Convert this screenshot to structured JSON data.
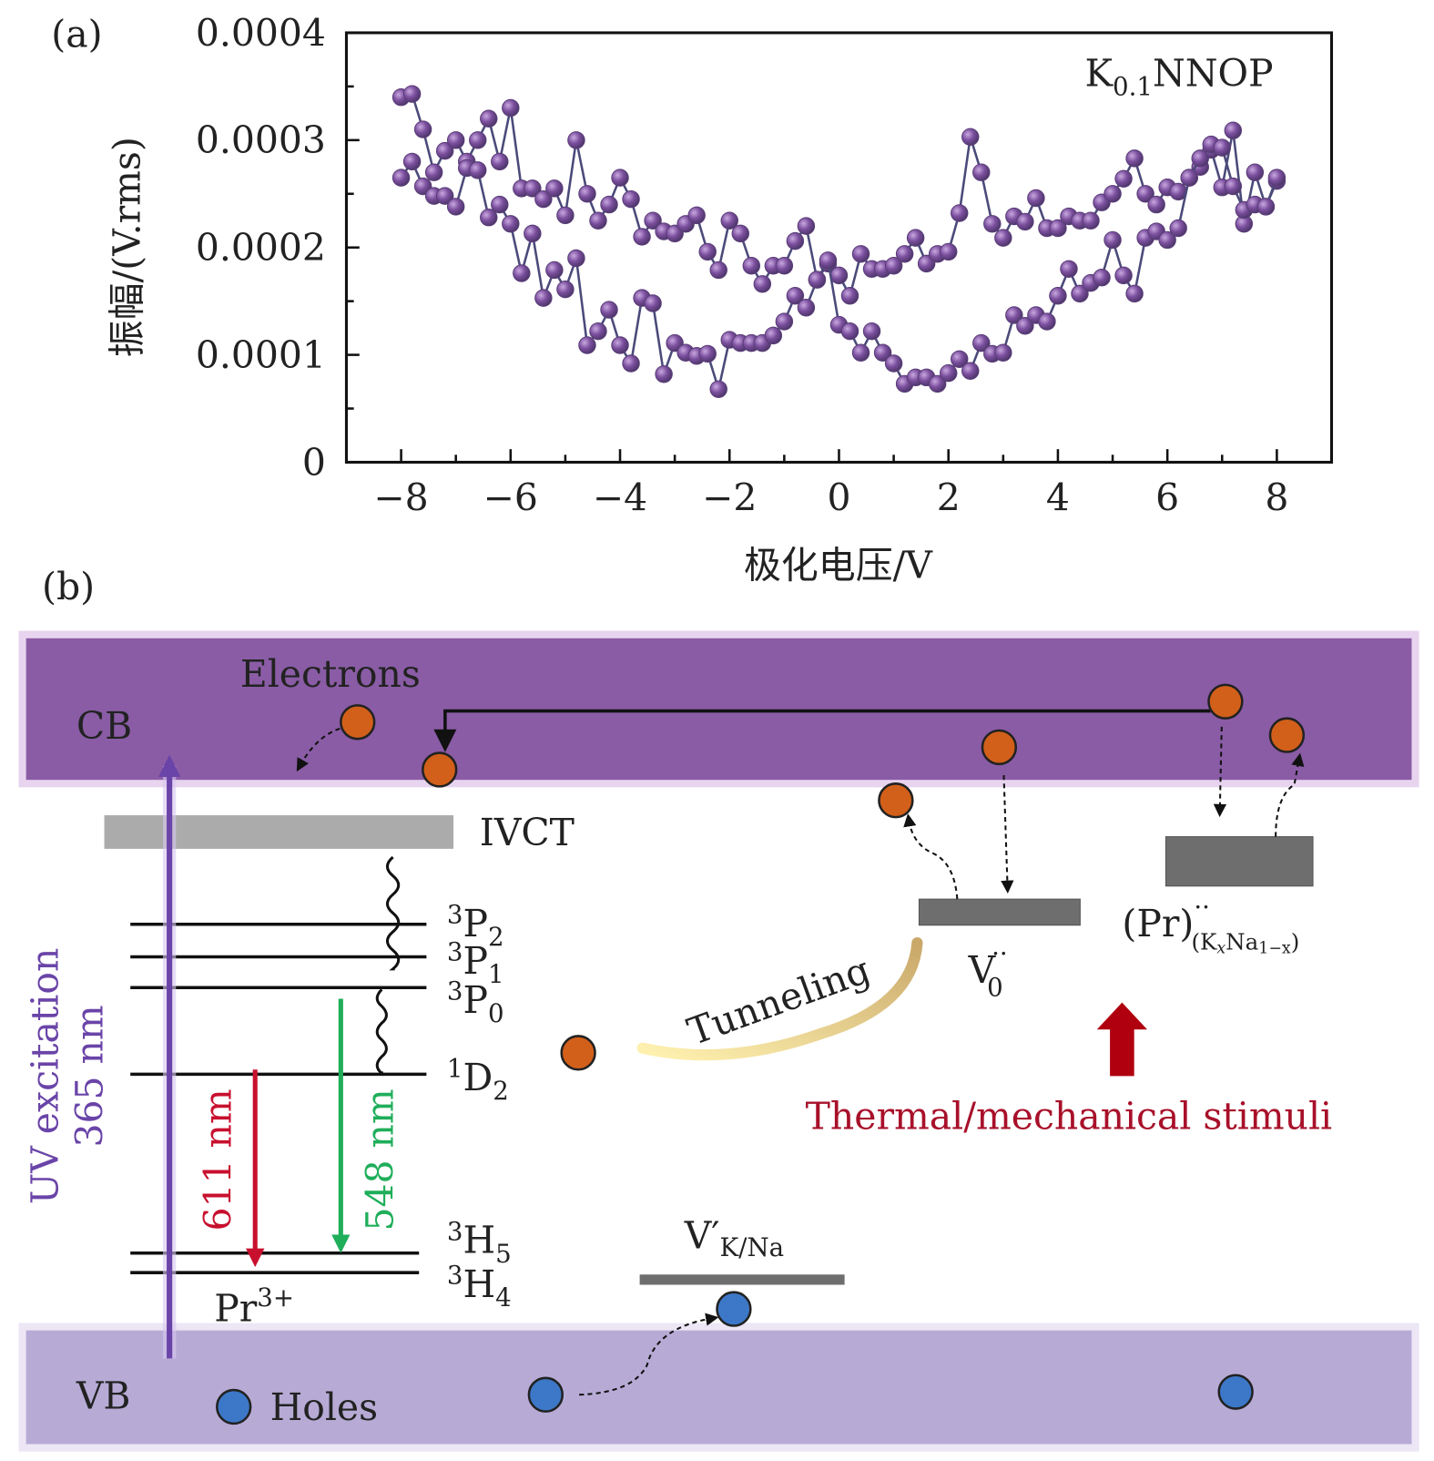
{
  "panel_a": {
    "label": "(a)",
    "chart_data": {
      "type": "scatter",
      "mode": "lines+markers",
      "annotation": {
        "main": "K",
        "sub": "0.1",
        "rest": "NNOP"
      },
      "xlabel": "极化电压/V",
      "ylabel": "振幅/(V.rms)",
      "xlim": [
        -9,
        9
      ],
      "ylim": [
        0,
        0.0004
      ],
      "xticks": [
        -8,
        -6,
        -4,
        -2,
        0,
        2,
        4,
        6,
        8
      ],
      "xtick_labels": [
        "−8",
        "−6",
        "−4",
        "−2",
        "0",
        "2",
        "4",
        "6",
        "8"
      ],
      "yticks": [
        0,
        0.0001,
        0.0002,
        0.0003,
        0.0004
      ],
      "ytick_labels": [
        "0",
        "0.0001",
        "0.0002",
        "0.0003",
        "0.0004"
      ],
      "grid": false,
      "marker_color": "#7b4f9e",
      "line_color": "#4a4a7a",
      "series": [
        {
          "x": [
            -8,
            -7.8,
            -7.6,
            -7.4,
            -7.2,
            -7,
            -6.8,
            -6.6,
            -6.4,
            -6.2,
            -6,
            -5.8,
            -5.6,
            -5.4,
            -5.2,
            -5,
            -4.8,
            -4.6,
            -4.4,
            -4.2,
            -4,
            -3.8,
            -3.6,
            -3.4,
            -3.2,
            -3,
            -2.8,
            -2.6,
            -2.4,
            -2.2,
            -2,
            -1.8,
            -1.6,
            -1.4,
            -1.2,
            -1,
            -0.8,
            -0.6,
            -0.4,
            -0.2,
            0,
            0.2,
            0.4,
            0.6,
            0.8,
            1,
            1.2,
            1.4,
            1.6,
            1.8,
            2,
            2.2,
            2.4,
            2.6,
            2.8,
            3,
            3.2,
            3.4,
            3.6,
            3.8,
            4,
            4.2,
            4.4,
            4.6,
            4.8,
            5,
            5.2,
            5.4,
            5.6,
            5.8,
            6,
            6.2,
            6.4,
            6.6,
            6.8,
            7,
            7.2,
            7.4,
            7.6,
            7.8,
            8
          ],
          "y": [
            0.00034,
            0.000343,
            0.00031,
            0.00027,
            0.00029,
            0.0003,
            0.00028,
            0.0003,
            0.00032,
            0.00028,
            0.00033,
            0.000255,
            0.000255,
            0.000245,
            0.000255,
            0.00023,
            0.0003,
            0.00025,
            0.000225,
            0.00024,
            0.000265,
            0.000245,
            0.00021,
            0.000225,
            0.000215,
            0.000213,
            0.000222,
            0.00023,
            0.000196,
            0.000179,
            0.000225,
            0.000213,
            0.000183,
            0.000166,
            0.000183,
            0.000183,
            0.000206,
            0.00022,
            0.00017,
            0.000185,
            0.000174,
            0.000155,
            0.000194,
            0.00018,
            0.00018,
            0.000183,
            0.000194,
            0.000209,
            0.000185,
            0.000194,
            0.000196,
            0.000232,
            0.000303,
            0.00027,
            0.000222,
            0.000209,
            0.000229,
            0.000224,
            0.000246,
            0.000218,
            0.000218,
            0.000229,
            0.000225,
            0.000225,
            0.000242,
            0.00025,
            0.000264,
            0.000283,
            0.00025,
            0.00024,
            0.000256,
            0.000252,
            0.000265,
            0.000275,
            0.000291,
            0.000256,
            0.000309,
            0.000222,
            0.00027,
            0.000238,
            0.000262
          ]
        },
        {
          "x": [
            -8,
            -7.8,
            -7.6,
            -7.4,
            -7.2,
            -7,
            -6.8,
            -6.6,
            -6.4,
            -6.2,
            -6,
            -5.8,
            -5.6,
            -5.4,
            -5.2,
            -5,
            -4.8,
            -4.6,
            -4.4,
            -4.2,
            -4,
            -3.8,
            -3.6,
            -3.4,
            -3.2,
            -3,
            -2.8,
            -2.6,
            -2.4,
            -2.2,
            -2,
            -1.8,
            -1.6,
            -1.4,
            -1.2,
            -1,
            -0.8,
            -0.6,
            -0.4,
            -0.2,
            0,
            0.2,
            0.4,
            0.6,
            0.8,
            1,
            1.2,
            1.4,
            1.6,
            1.8,
            2,
            2.2,
            2.4,
            2.6,
            2.8,
            3,
            3.2,
            3.4,
            3.6,
            3.8,
            4,
            4.2,
            4.4,
            4.6,
            4.8,
            5,
            5.2,
            5.4,
            5.6,
            5.8,
            6,
            6.2,
            6.4,
            6.6,
            6.8,
            7,
            7.2,
            7.4,
            7.6,
            7.8,
            8
          ],
          "y": [
            0.000265,
            0.00028,
            0.000257,
            0.000248,
            0.000248,
            0.000238,
            0.000274,
            0.000272,
            0.000228,
            0.00024,
            0.000222,
            0.000176,
            0.000213,
            0.000153,
            0.000179,
            0.000161,
            0.00019,
            0.000109,
            0.000122,
            0.000142,
            0.000109,
            9.2e-05,
            0.000153,
            0.000148,
            8.2e-05,
            0.000111,
            0.000102,
            9.9e-05,
            0.000101,
            6.8e-05,
            0.000114,
            0.000111,
            0.000111,
            0.000111,
            0.000118,
            0.000131,
            0.000155,
            0.000144,
            0.00017,
            0.000188,
            0.000128,
            0.000122,
            0.000102,
            0.000122,
            0.000102,
            9.2e-05,
            7.3e-05,
            7.9e-05,
            7.9e-05,
            7.3e-05,
            8.3e-05,
            9.6e-05,
            8.5e-05,
            0.000111,
            0.000101,
            0.000102,
            0.000137,
            0.000127,
            0.000137,
            0.000131,
            0.000155,
            0.00018,
            0.000157,
            0.000167,
            0.000172,
            0.000207,
            0.000174,
            0.000157,
            0.000209,
            0.000215,
            0.000207,
            0.000218,
            0.000265,
            0.000283,
            0.000296,
            0.000293,
            0.000257,
            0.000235,
            0.00024,
            0.000238,
            0.000265
          ]
        }
      ]
    }
  },
  "panel_b": {
    "label": "(b)",
    "cb_label": "CB",
    "vb_label": "VB",
    "electrons_label": "Electrons",
    "holes_label": "Holes",
    "ivct_label": "IVCT",
    "levels": [
      {
        "sup": "3",
        "main": "P",
        "sub": "2"
      },
      {
        "sup": "3",
        "main": "P",
        "sub": "1"
      },
      {
        "sup": "3",
        "main": "P",
        "sub": "0"
      },
      {
        "sup": "1",
        "main": "D",
        "sub": "2"
      },
      {
        "sup": "3",
        "main": "H",
        "sub": "5"
      },
      {
        "sup": "3",
        "main": "H",
        "sub": "4"
      }
    ],
    "ion_label": {
      "main": "Pr",
      "sup": "3+"
    },
    "uv_label_1": "UV excitation",
    "uv_label_2": "365 nm",
    "red_emission": "611 nm",
    "green_emission": "548 nm",
    "tunneling_label": "Tunneling",
    "vo_label": {
      "main": "V",
      "sup": "··",
      "sub": "0"
    },
    "pr_defect_label": {
      "main": "(Pr)",
      "sup": "··",
      "sub": "(K",
      "sub_x": "x",
      "sub_mid": "Na",
      "sub_end": "1−x",
      "close": ")"
    },
    "vk_label": {
      "main": "V′",
      "sub": "K/Na"
    },
    "stimuli_label": "Thermal/mechanical stimuli",
    "colors": {
      "cb": "#8a5ca5",
      "vb": "#b7abd6",
      "electron": "#d2601a",
      "hole": "#3d78c8",
      "uv": "#6a44a8",
      "red": "#c8102e",
      "green": "#1fae5a",
      "trap": "#707070",
      "ivct": "#ababab",
      "stimuli": "#a8102a"
    }
  }
}
